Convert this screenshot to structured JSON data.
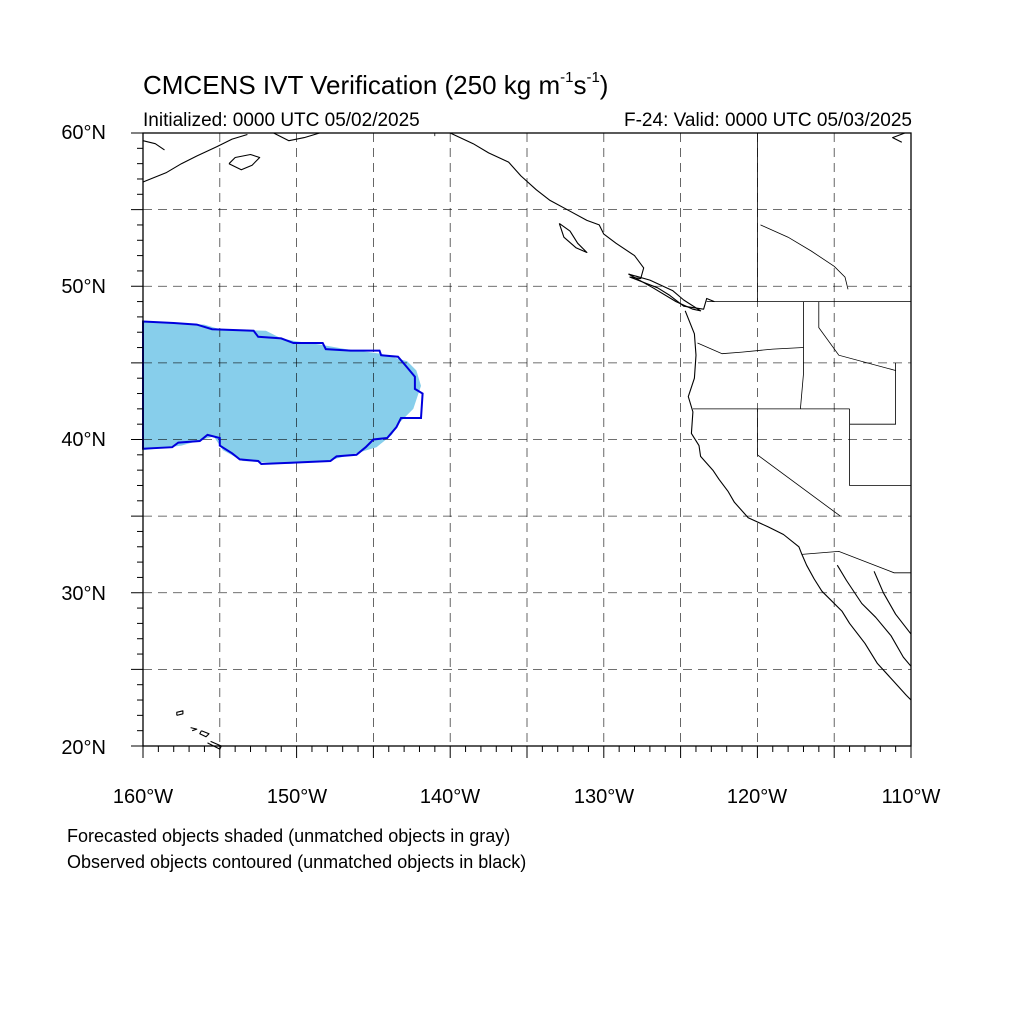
{
  "title": {
    "prefix": "CMCENS IVT Verification (250 kg m",
    "exp1": "-1",
    "mid": "s",
    "exp2": "-1",
    "suffix": ")"
  },
  "initialized": "Initialized: 0000 UTC 05/02/2025",
  "valid": "F-24: Valid: 0000 UTC 05/03/2025",
  "lat_labels": [
    "60°N",
    "50°N",
    "40°N",
    "30°N",
    "20°N"
  ],
  "lon_labels": [
    "160°W",
    "150°W",
    "140°W",
    "130°W",
    "120°W",
    "110°W"
  ],
  "notes": [
    "Forecasted objects shaded (unmatched objects in gray)",
    "Observed objects contoured (unmatched objects in black)"
  ],
  "map_extent": {
    "lon_min": -160,
    "lon_max": -110,
    "lat_min": 20,
    "lat_max": 60
  },
  "colors": {
    "forecast_fill": "#87ceeb",
    "observed_contour": "#0000dd",
    "coast": "#000000",
    "grid": "#000000"
  },
  "forecast_object": [
    [
      -160,
      47.7
    ],
    [
      -156,
      47.5
    ],
    [
      -155,
      47.2
    ],
    [
      -152,
      47.1
    ],
    [
      -151,
      46.6
    ],
    [
      -150,
      46.4
    ],
    [
      -148.5,
      46.2
    ],
    [
      -146.8,
      45.9
    ],
    [
      -144.5,
      45.6
    ],
    [
      -142.8,
      45.1
    ],
    [
      -142.2,
      44.5
    ],
    [
      -141.9,
      43.5
    ],
    [
      -142.4,
      42.0
    ],
    [
      -143.3,
      41.1
    ],
    [
      -143.8,
      40.3
    ],
    [
      -144.8,
      39.5
    ],
    [
      -146.1,
      39.1
    ],
    [
      -148,
      38.6
    ],
    [
      -150.5,
      38.4
    ],
    [
      -153.5,
      38.6
    ],
    [
      -154.8,
      39.3
    ],
    [
      -155.4,
      40.2
    ],
    [
      -157.5,
      39.6
    ],
    [
      -160,
      39.3
    ]
  ],
  "observed_object": [
    [
      -160,
      47.7
    ],
    [
      -158,
      47.6
    ],
    [
      -156.5,
      47.5
    ],
    [
      -155.5,
      47.2
    ],
    [
      -152.8,
      47.1
    ],
    [
      -152.5,
      46.7
    ],
    [
      -151,
      46.6
    ],
    [
      -150.2,
      46.3
    ],
    [
      -148.3,
      46.3
    ],
    [
      -148.1,
      45.9
    ],
    [
      -146.5,
      45.8
    ],
    [
      -144.6,
      45.8
    ],
    [
      -144.5,
      45.5
    ],
    [
      -143.4,
      45.4
    ],
    [
      -142.8,
      44.7
    ],
    [
      -142.3,
      44.1
    ],
    [
      -142.3,
      43.3
    ],
    [
      -141.8,
      43.0
    ],
    [
      -141.9,
      41.4
    ],
    [
      -143.2,
      41.4
    ],
    [
      -143.5,
      40.8
    ],
    [
      -144.1,
      40.1
    ],
    [
      -145,
      40.0
    ],
    [
      -145.5,
      39.5
    ],
    [
      -146.1,
      39.0
    ],
    [
      -147.4,
      38.9
    ],
    [
      -147.8,
      38.6
    ],
    [
      -150,
      38.5
    ],
    [
      -152.3,
      38.4
    ],
    [
      -152.5,
      38.6
    ],
    [
      -153.7,
      38.7
    ],
    [
      -154.2,
      39.1
    ],
    [
      -155.0,
      39.6
    ],
    [
      -155.0,
      40.1
    ],
    [
      -155.8,
      40.3
    ],
    [
      -156.3,
      39.9
    ],
    [
      -157.7,
      39.8
    ],
    [
      -158.1,
      39.5
    ],
    [
      -160,
      39.4
    ]
  ],
  "coastlines": [
    [
      [
        -160,
        56.8
      ],
      [
        -158.5,
        57.4
      ],
      [
        -157.5,
        58.0
      ],
      [
        -156.5,
        58.5
      ],
      [
        -155.2,
        59.1
      ],
      [
        -154.2,
        59.6
      ],
      [
        -153.2,
        59.9
      ]
    ],
    [
      [
        -160,
        59.5
      ],
      [
        -159.2,
        59.3
      ],
      [
        -158.6,
        58.9
      ]
    ],
    [
      [
        -154.4,
        58.0
      ],
      [
        -153.6,
        57.6
      ],
      [
        -152.9,
        57.9
      ],
      [
        -152.4,
        58.4
      ],
      [
        -153.0,
        58.6
      ],
      [
        -154.0,
        58.4
      ],
      [
        -154.4,
        58.0
      ]
    ],
    [
      [
        -151.5,
        60
      ],
      [
        -150.5,
        59.5
      ],
      [
        -149.5,
        59.7
      ],
      [
        -148.5,
        60
      ]
    ],
    [
      [
        -140,
        60
      ],
      [
        -138.5,
        59.3
      ],
      [
        -137.5,
        58.7
      ],
      [
        -136.2,
        58.1
      ],
      [
        -135.4,
        57.2
      ],
      [
        -134.4,
        56.3
      ],
      [
        -133.5,
        55.6
      ],
      [
        -132.2,
        54.9
      ],
      [
        -131.1,
        54.3
      ],
      [
        -130.3,
        54.0
      ],
      [
        -130.0,
        53.4
      ],
      [
        -129.2,
        52.8
      ],
      [
        -128.0,
        52.0
      ],
      [
        -127.4,
        51.2
      ],
      [
        -127.6,
        50.5
      ],
      [
        -128.3,
        50.6
      ],
      [
        -126.5,
        49.9
      ],
      [
        -125.7,
        49.4
      ],
      [
        -124.8,
        48.7
      ],
      [
        -123.5,
        48.5
      ],
      [
        -123.3,
        49.2
      ],
      [
        -122.8,
        49.0
      ]
    ],
    [
      [
        -132.9,
        54.1
      ],
      [
        -132.2,
        53.6
      ],
      [
        -131.7,
        52.8
      ],
      [
        -131.1,
        52.2
      ],
      [
        -131.8,
        52.5
      ],
      [
        -132.6,
        53.2
      ],
      [
        -132.9,
        54.1
      ]
    ],
    [
      [
        -128.4,
        50.8
      ],
      [
        -127.0,
        50.4
      ],
      [
        -125.5,
        49.7
      ],
      [
        -124.8,
        49.1
      ],
      [
        -123.7,
        48.4
      ],
      [
        -124.2,
        48.5
      ],
      [
        -125.3,
        49.0
      ],
      [
        -126.8,
        49.9
      ],
      [
        -128.4,
        50.8
      ]
    ],
    [
      [
        -124.7,
        48.4
      ],
      [
        -124.1,
        46.9
      ],
      [
        -124.0,
        45.5
      ],
      [
        -124.1,
        44.0
      ],
      [
        -124.5,
        42.8
      ],
      [
        -124.2,
        41.8
      ],
      [
        -124.3,
        40.4
      ],
      [
        -123.8,
        39.6
      ],
      [
        -123.7,
        38.9
      ],
      [
        -122.9,
        38.0
      ],
      [
        -122.5,
        37.4
      ],
      [
        -121.9,
        36.6
      ],
      [
        -121.5,
        35.9
      ],
      [
        -120.6,
        34.9
      ],
      [
        -119.3,
        34.3
      ],
      [
        -118.3,
        33.8
      ],
      [
        -117.3,
        33.0
      ],
      [
        -117.1,
        32.5
      ],
      [
        -116.8,
        31.8
      ],
      [
        -116.3,
        30.9
      ],
      [
        -115.8,
        30.1
      ],
      [
        -114.5,
        28.8
      ],
      [
        -114.0,
        28.0
      ],
      [
        -113.0,
        26.7
      ],
      [
        -112.2,
        25.4
      ],
      [
        -111.2,
        24.3
      ],
      [
        -110.3,
        23.3
      ],
      [
        -110,
        23.0
      ]
    ],
    [
      [
        -114.8,
        31.8
      ],
      [
        -114.2,
        30.8
      ],
      [
        -113.2,
        29.3
      ],
      [
        -112.3,
        28.4
      ],
      [
        -111.3,
        27.2
      ],
      [
        -110.5,
        25.8
      ],
      [
        -110,
        25.2
      ]
    ],
    [
      [
        -112.4,
        31.4
      ],
      [
        -111.8,
        30.0
      ],
      [
        -111.0,
        28.6
      ],
      [
        -110,
        27.3
      ]
    ],
    [
      [
        -157.8,
        22.0
      ],
      [
        -157.4,
        22.1
      ],
      [
        -157.4,
        22.3
      ],
      [
        -157.8,
        22.2
      ],
      [
        -157.8,
        22.0
      ]
    ],
    [
      [
        -156.2,
        21.0
      ],
      [
        -155.7,
        20.8
      ],
      [
        -155.9,
        20.6
      ],
      [
        -156.3,
        20.8
      ],
      [
        -156.2,
        21.0
      ]
    ],
    [
      [
        -156.9,
        21.2
      ],
      [
        -156.5,
        21.1
      ],
      [
        -156.8,
        21.0
      ]
    ],
    [
      [
        -155.8,
        20.2
      ],
      [
        -155.0,
        19.8
      ],
      [
        -154.9,
        20.0
      ],
      [
        -155.6,
        20.3
      ]
    ],
    [
      [
        -110.6,
        59.4
      ],
      [
        -111.2,
        59.7
      ],
      [
        -110.4,
        60
      ]
    ]
  ],
  "borders": [
    [
      [
        -141,
        60
      ],
      [
        -141,
        59.8
      ]
    ],
    [
      [
        -123.3,
        49.0
      ],
      [
        -110,
        49.0
      ]
    ],
    [
      [
        -120,
        60
      ],
      [
        -120,
        49
      ]
    ],
    [
      [
        -124.2,
        42.0
      ],
      [
        -114.0,
        42.0
      ]
    ],
    [
      [
        -120,
        42.0
      ],
      [
        -120,
        39.0
      ],
      [
        -114.6,
        35.0
      ]
    ],
    [
      [
        -111,
        45
      ],
      [
        -111,
        41
      ],
      [
        -114.0,
        41
      ]
    ],
    [
      [
        -114.0,
        42
      ],
      [
        -114.0,
        37
      ],
      [
        -110,
        37
      ]
    ],
    [
      [
        -117.1,
        32.5
      ],
      [
        -114.7,
        32.7
      ],
      [
        -111.1,
        31.3
      ],
      [
        -110,
        31.3
      ]
    ],
    [
      [
        -117.0,
        49
      ],
      [
        -117.0,
        46.0
      ],
      [
        -117.0,
        44.3
      ],
      [
        -117.2,
        42.0
      ]
    ],
    [
      [
        -123.9,
        46.3
      ],
      [
        -122.3,
        45.6
      ],
      [
        -121.0,
        45.7
      ],
      [
        -119.0,
        45.9
      ],
      [
        -117.0,
        46.0
      ]
    ],
    [
      [
        -116.0,
        49
      ],
      [
        -116.0,
        47.3
      ],
      [
        -114.7,
        45.5
      ],
      [
        -111.0,
        44.5
      ]
    ],
    [
      [
        -119.8,
        54.0
      ],
      [
        -118.0,
        53.2
      ],
      [
        -116.5,
        52.3
      ],
      [
        -115.0,
        51.3
      ],
      [
        -114.3,
        50.6
      ],
      [
        -114.1,
        49.8
      ]
    ]
  ]
}
